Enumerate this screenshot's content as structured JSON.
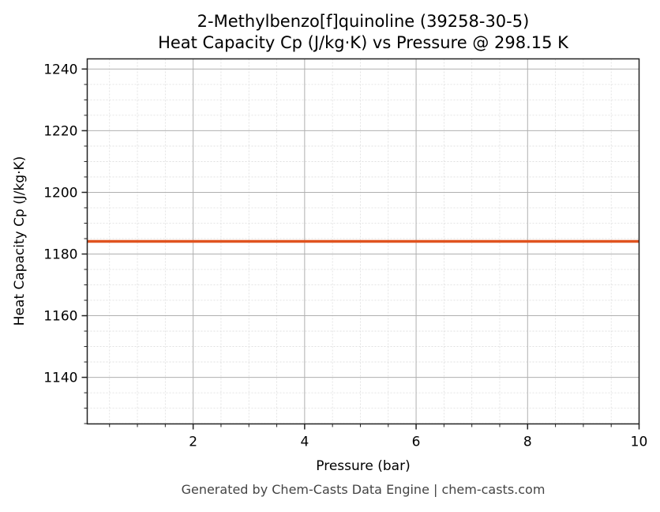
{
  "chart_data": {
    "type": "line",
    "title": "2-Methylbenzo[f]quinoline (39258-30-5)",
    "subtitle": "Heat Capacity Cp (J/kg·K) vs Pressure @ 298.15 K",
    "xlabel": "Pressure (bar)",
    "ylabel": "Heat Capacity Cp (J/kg·K)",
    "xlim": [
      0.1,
      10
    ],
    "ylim": [
      1124.9,
      1243.3
    ],
    "xticks": [
      2,
      4,
      6,
      8,
      10
    ],
    "yticks": [
      1140,
      1160,
      1180,
      1200,
      1220,
      1240
    ],
    "grid": true,
    "series": [
      {
        "x": [
          0.1,
          10
        ],
        "y": [
          1184.1,
          1184.1
        ],
        "color": "#e0531f"
      }
    ]
  },
  "footer": "Generated by Chem-Casts Data Engine | chem-casts.com"
}
